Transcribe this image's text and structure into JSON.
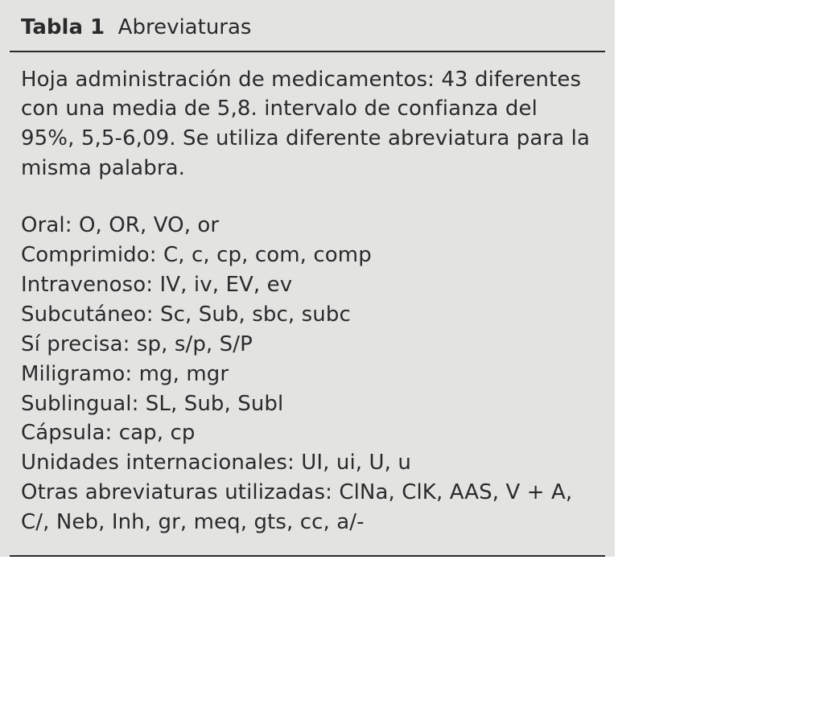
{
  "colors": {
    "background": "#e3e4e2",
    "text": "#2a2a2a",
    "rule": "#2a2a2a"
  },
  "typography": {
    "font_family": "Segoe UI / DejaVu Sans / sans-serif",
    "font_size_pt": 19,
    "line_height": 1.42,
    "title_weight": 700
  },
  "table_label": "Tabla 1",
  "table_title": "Abreviaturas",
  "intro": "Hoja administración de medicamentos: 43 diferentes con una media de 5,8. intervalo de confianza del 95%, 5,5-6,09. Se utiliza diferente abreviatura para la misma palabra.",
  "entries": [
    {
      "term": "Oral",
      "abbrs": "O, OR, VO, or"
    },
    {
      "term": "Comprimido",
      "abbrs": "C, c, cp, com,  comp"
    },
    {
      "term": "Intravenoso",
      "abbrs": "IV, iv, EV, ev"
    },
    {
      "term": "Subcutáneo",
      "abbrs": "Sc, Sub, sbc, subc"
    },
    {
      "term": "Sí precisa",
      "abbrs": "sp, s/p,  S/P"
    },
    {
      "term": "Miligramo",
      "abbrs": "mg, mgr"
    },
    {
      "term": "Sublingual",
      "abbrs": "SL, Sub, Subl"
    },
    {
      "term": "Cápsula",
      "abbrs": "cap, cp"
    },
    {
      "term": "Unidades internacionales",
      "abbrs": "UI, ui, U, u"
    }
  ],
  "others_label": "Otras abreviaturas utilizadas",
  "others_abbrs": "ClNa, ClK, AAS, V + A, C/, Neb, Inh, gr, meq, gts, cc, a/-"
}
